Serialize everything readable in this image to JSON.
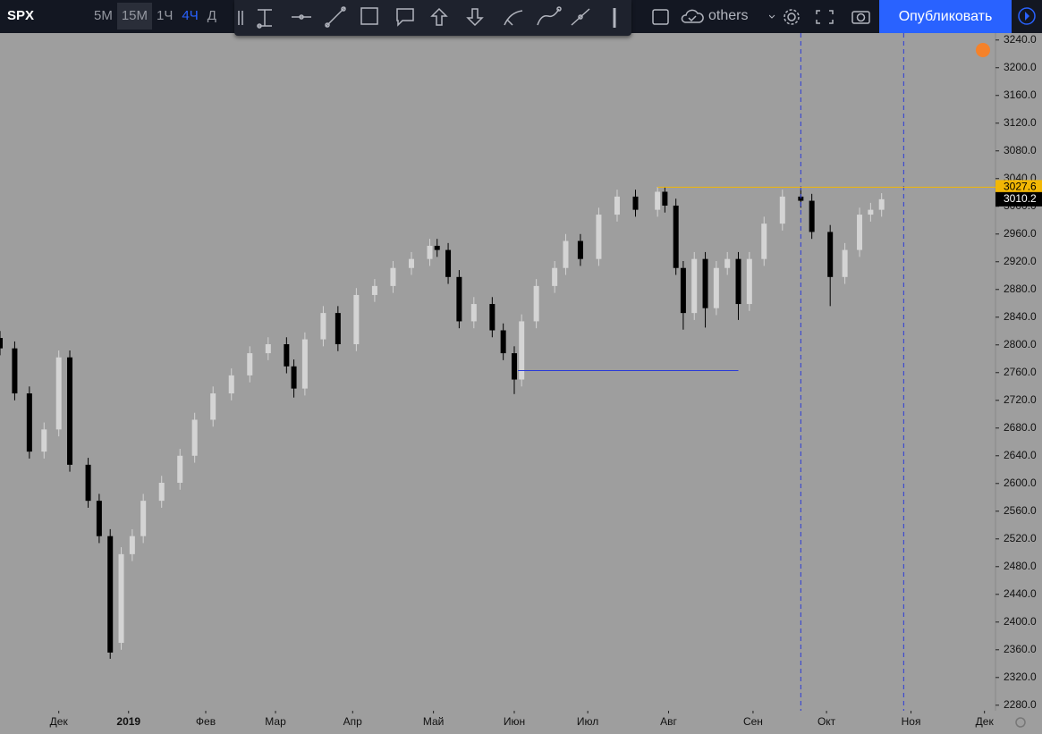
{
  "toolbar": {
    "symbol": "SPX",
    "intervals": [
      "5M",
      "15M",
      "1Ч",
      "4Ч",
      "Д"
    ],
    "layout": "others",
    "publish": "Опубликовать"
  },
  "chart_data": {
    "type": "candlestick",
    "x": [
      -16,
      -12,
      -8,
      -4,
      0,
      3,
      8,
      11,
      14,
      17,
      20,
      23,
      28,
      33,
      37,
      42,
      47,
      52,
      57,
      62,
      64,
      67,
      72,
      76,
      81,
      86,
      91,
      96,
      101,
      103,
      106,
      109,
      113,
      118,
      121,
      124,
      126,
      130,
      135,
      138,
      142,
      147,
      152,
      157,
      163,
      165,
      168,
      170,
      173,
      176,
      179,
      182,
      185,
      188,
      192,
      197,
      202,
      205,
      210,
      214,
      218,
      221,
      224
    ],
    "open": [
      2810,
      2795,
      2730,
      2646,
      2678,
      2782,
      2627,
      2575,
      2524,
      2370,
      2498,
      2524,
      2575,
      2601,
      2640,
      2692,
      2730,
      2756,
      2788,
      2801,
      2769,
      2737,
      2808,
      2846,
      2801,
      2872,
      2885,
      2911,
      2924,
      2943,
      2937,
      2898,
      2834,
      2859,
      2821,
      2788,
      2750,
      2834,
      2885,
      2911,
      2950,
      2924,
      2988,
      3014,
      2995,
      3021,
      3001,
      2911,
      2846,
      2924,
      2853,
      2911,
      2924,
      2859,
      2924,
      2975,
      3014,
      3008,
      2963,
      2898,
      2937,
      2988,
      2995
    ],
    "high": [
      2820,
      2805,
      2740,
      2688,
      2792,
      2792,
      2637,
      2585,
      2534,
      2508,
      2534,
      2585,
      2611,
      2650,
      2702,
      2740,
      2766,
      2798,
      2811,
      2811,
      2779,
      2818,
      2856,
      2856,
      2882,
      2895,
      2921,
      2934,
      2953,
      2953,
      2947,
      2908,
      2869,
      2869,
      2831,
      2798,
      2844,
      2895,
      2921,
      2960,
      2960,
      2998,
      3024,
      3024,
      3028,
      3028,
      3011,
      2921,
      2934,
      2934,
      2921,
      2934,
      2934,
      2934,
      2985,
      3024,
      3025,
      3018,
      2973,
      2947,
      2998,
      3005,
      3019
    ],
    "low": [
      2785,
      2720,
      2636,
      2636,
      2668,
      2617,
      2565,
      2514,
      2347,
      2360,
      2488,
      2514,
      2565,
      2591,
      2630,
      2682,
      2720,
      2746,
      2778,
      2759,
      2724,
      2727,
      2798,
      2791,
      2791,
      2862,
      2875,
      2901,
      2914,
      2927,
      2888,
      2824,
      2824,
      2811,
      2778,
      2729,
      2740,
      2824,
      2875,
      2901,
      2914,
      2914,
      2978,
      2985,
      2985,
      2991,
      2901,
      2822,
      2836,
      2825,
      2843,
      2901,
      2836,
      2849,
      2914,
      2965,
      2998,
      2953,
      2856,
      2888,
      2927,
      2978,
      2985
    ],
    "close": [
      2795,
      2730,
      2646,
      2678,
      2782,
      2627,
      2575,
      2524,
      2356,
      2498,
      2524,
      2575,
      2601,
      2640,
      2692,
      2730,
      2756,
      2788,
      2801,
      2769,
      2737,
      2808,
      2846,
      2801,
      2872,
      2885,
      2911,
      2924,
      2943,
      2937,
      2898,
      2834,
      2859,
      2821,
      2788,
      2750,
      2834,
      2885,
      2911,
      2950,
      2924,
      2988,
      3014,
      2995,
      3021,
      3001,
      2911,
      2846,
      2924,
      2853,
      2911,
      2924,
      2859,
      2924,
      2975,
      3014,
      3008,
      2963,
      2898,
      2937,
      2988,
      2995,
      3010.2
    ],
    "up_color": "#d4d4d4",
    "down_color": "#000000",
    "xlim": [
      -16,
      255
    ],
    "ylim": [
      2272,
      3250
    ],
    "xticks": [
      {
        "value": 0,
        "label": "Дек"
      },
      {
        "value": 19,
        "label": "2019"
      },
      {
        "value": 40,
        "label": "Фев"
      },
      {
        "value": 59,
        "label": "Мар"
      },
      {
        "value": 80,
        "label": "Апр"
      },
      {
        "value": 102,
        "label": "Май"
      },
      {
        "value": 124,
        "label": "Июн"
      },
      {
        "value": 144,
        "label": "Июл"
      },
      {
        "value": 166,
        "label": "Авг"
      },
      {
        "value": 189,
        "label": "Сен"
      },
      {
        "value": 209,
        "label": "Окт"
      },
      {
        "value": 232,
        "label": "Ноя"
      },
      {
        "value": 252,
        "label": "Дек"
      }
    ],
    "yticks": [
      {
        "value": 2280,
        "label": "2280.0"
      },
      {
        "value": 2320,
        "label": "2320.0"
      },
      {
        "value": 2360,
        "label": "2360.0"
      },
      {
        "value": 2400,
        "label": "2400.0"
      },
      {
        "value": 2440,
        "label": "2440.0"
      },
      {
        "value": 2480,
        "label": "2480.0"
      },
      {
        "value": 2520,
        "label": "2520.0"
      },
      {
        "value": 2560,
        "label": "2560.0"
      },
      {
        "value": 2600,
        "label": "2600.0"
      },
      {
        "value": 2640,
        "label": "2640.0"
      },
      {
        "value": 2680,
        "label": "2680.0"
      },
      {
        "value": 2720,
        "label": "2720.0"
      },
      {
        "value": 2760,
        "label": "2760.0"
      },
      {
        "value": 2800,
        "label": "2800.0"
      },
      {
        "value": 2840,
        "label": "2840.0"
      },
      {
        "value": 2880,
        "label": "2880.0"
      },
      {
        "value": 2920,
        "label": "2920.0"
      },
      {
        "value": 2960,
        "label": "2960.0"
      },
      {
        "value": 3000,
        "label": "3000.0"
      },
      {
        "value": 3040,
        "label": "3040.0"
      },
      {
        "value": 3080,
        "label": "3080.0"
      },
      {
        "value": 3120,
        "label": "3120.0"
      },
      {
        "value": 3160,
        "label": "3160.0"
      },
      {
        "value": 3200,
        "label": "3200.0"
      },
      {
        "value": 3240,
        "label": "3240.0"
      }
    ],
    "hlines": [
      {
        "value": 3027.6,
        "x_start": 163,
        "color": "#f2b705"
      }
    ],
    "segments": [
      {
        "x": [
          125,
          185
        ],
        "y": [
          2763,
          2763
        ],
        "color": "#2a3ad8"
      }
    ],
    "vlines": [
      {
        "x": 202,
        "color": "#2a3ad8"
      },
      {
        "x": 230,
        "color": "#2a3ad8"
      }
    ]
  }
}
